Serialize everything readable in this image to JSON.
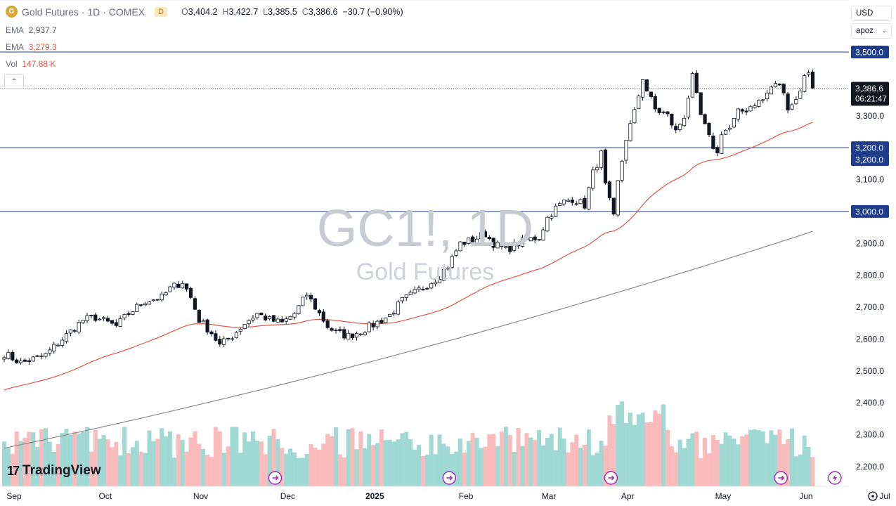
{
  "header": {
    "symbol_icon": "gold-coin-icon",
    "symbol_letter": "G",
    "title": "Gold Futures · 1D · COMEX",
    "badge": "D",
    "ohlc": {
      "o_label": "O",
      "o": "3,404.2",
      "h_label": "H",
      "h": "3,422.7",
      "l_label": "L",
      "l": "3,385.5",
      "c_label": "C",
      "c": "3,386.6",
      "change": "−30.7 (−0.90%)"
    }
  },
  "indicators": [
    {
      "label": "EMA",
      "value": "2,937.7"
    },
    {
      "label": "EMA",
      "value": "3,279.3"
    },
    {
      "label": "Vol",
      "value": "147.88 K"
    }
  ],
  "collapse_glyph": "⌃",
  "controls": {
    "currency": "USD",
    "scale": "apoz"
  },
  "watermark": {
    "symbol": "GC1!, 1D",
    "name": "Gold Futures"
  },
  "price_labels": {
    "resistance_top": "3,500.0",
    "last_price": "3,386.6",
    "countdown": "06:21:47",
    "support_a": "3,200.0",
    "support_b": "3,200.0",
    "support_c": "3,000.0"
  },
  "logo": {
    "text": "TradingView"
  },
  "goto_icon": "clock-icon",
  "colors": {
    "up": "#26a69a",
    "down": "#ef5350",
    "ema_fast": "#e0564b",
    "ema_slow": "#8a8a8a",
    "vol_up": "#80cbc4",
    "vol_down": "#f7a4a4",
    "level": "#1e3c8c",
    "label_bg": "#1e3c8c"
  },
  "chart_data": {
    "type": "candlestick",
    "y_ticks": [
      "3,300.0",
      "3,100.0",
      "2,900.0",
      "2,800.0",
      "2,700.0",
      "2,600.0",
      "2,500.0",
      "2,400.0",
      "2,300.0",
      "2,200.0"
    ],
    "y_values": [
      3300,
      3100,
      2900,
      2800,
      2700,
      2600,
      2500,
      2400,
      2300,
      2200
    ],
    "ylim": [
      2165,
      3525
    ],
    "x_labels": [
      "Sep",
      "Oct",
      "Nov",
      "Dec",
      "2025",
      "Feb",
      "Mar",
      "Apr",
      "May",
      "Jun",
      "Jul"
    ],
    "x_label_days": [
      0,
      22,
      45,
      66,
      87,
      109,
      129,
      148,
      171,
      191,
      210
    ],
    "horizontal_levels": [
      3500,
      3200,
      3000
    ],
    "event_markers_days": [
      65,
      107,
      146,
      187,
      200
    ],
    "anchors": [
      [
        0,
        2555
      ],
      [
        4,
        2525
      ],
      [
        10,
        2550
      ],
      [
        14,
        2600
      ],
      [
        19,
        2660
      ],
      [
        22,
        2668
      ],
      [
        27,
        2640
      ],
      [
        30,
        2680
      ],
      [
        34,
        2720
      ],
      [
        38,
        2730
      ],
      [
        40,
        2758
      ],
      [
        43,
        2780
      ],
      [
        45,
        2730
      ],
      [
        47,
        2660
      ],
      [
        50,
        2620
      ],
      [
        52,
        2580
      ],
      [
        55,
        2610
      ],
      [
        58,
        2650
      ],
      [
        61,
        2680
      ],
      [
        64,
        2660
      ],
      [
        67,
        2650
      ],
      [
        70,
        2680
      ],
      [
        73,
        2740
      ],
      [
        76,
        2680
      ],
      [
        78,
        2640
      ],
      [
        80,
        2620
      ],
      [
        83,
        2610
      ],
      [
        86,
        2625
      ],
      [
        89,
        2645
      ],
      [
        93,
        2675
      ],
      [
        96,
        2720
      ],
      [
        99,
        2745
      ],
      [
        102,
        2770
      ],
      [
        105,
        2800
      ],
      [
        107,
        2830
      ],
      [
        110,
        2900
      ],
      [
        113,
        2910
      ],
      [
        116,
        2930
      ],
      [
        118,
        2900
      ],
      [
        121,
        2880
      ],
      [
        124,
        2900
      ],
      [
        126,
        2910
      ],
      [
        129,
        2920
      ],
      [
        131,
        2980
      ],
      [
        133,
        3010
      ],
      [
        135,
        3030
      ],
      [
        137,
        3040
      ],
      [
        140,
        3020
      ],
      [
        142,
        3120
      ],
      [
        144,
        3180
      ],
      [
        145,
        3080
      ],
      [
        147,
        2980
      ],
      [
        148,
        3090
      ],
      [
        150,
        3230
      ],
      [
        152,
        3310
      ],
      [
        154,
        3420
      ],
      [
        155,
        3380
      ],
      [
        157,
        3320
      ],
      [
        160,
        3300
      ],
      [
        162,
        3250
      ],
      [
        164,
        3300
      ],
      [
        166,
        3420
      ],
      [
        168,
        3300
      ],
      [
        170,
        3230
      ],
      [
        172,
        3180
      ],
      [
        173,
        3250
      ],
      [
        175,
        3260
      ],
      [
        177,
        3310
      ],
      [
        179,
        3320
      ],
      [
        181,
        3340
      ],
      [
        183,
        3350
      ],
      [
        185,
        3390
      ],
      [
        187,
        3400
      ],
      [
        189,
        3330
      ],
      [
        191,
        3350
      ],
      [
        193,
        3420
      ],
      [
        194,
        3440
      ],
      [
        195,
        3386.6
      ]
    ],
    "ema_slow_fit": {
      "start_day": 0,
      "start": 2258,
      "end_day": 195,
      "end": 2937.7
    },
    "ema_fast_last": 3279.3,
    "last_close": 3386.6,
    "volume_units": "K"
  }
}
